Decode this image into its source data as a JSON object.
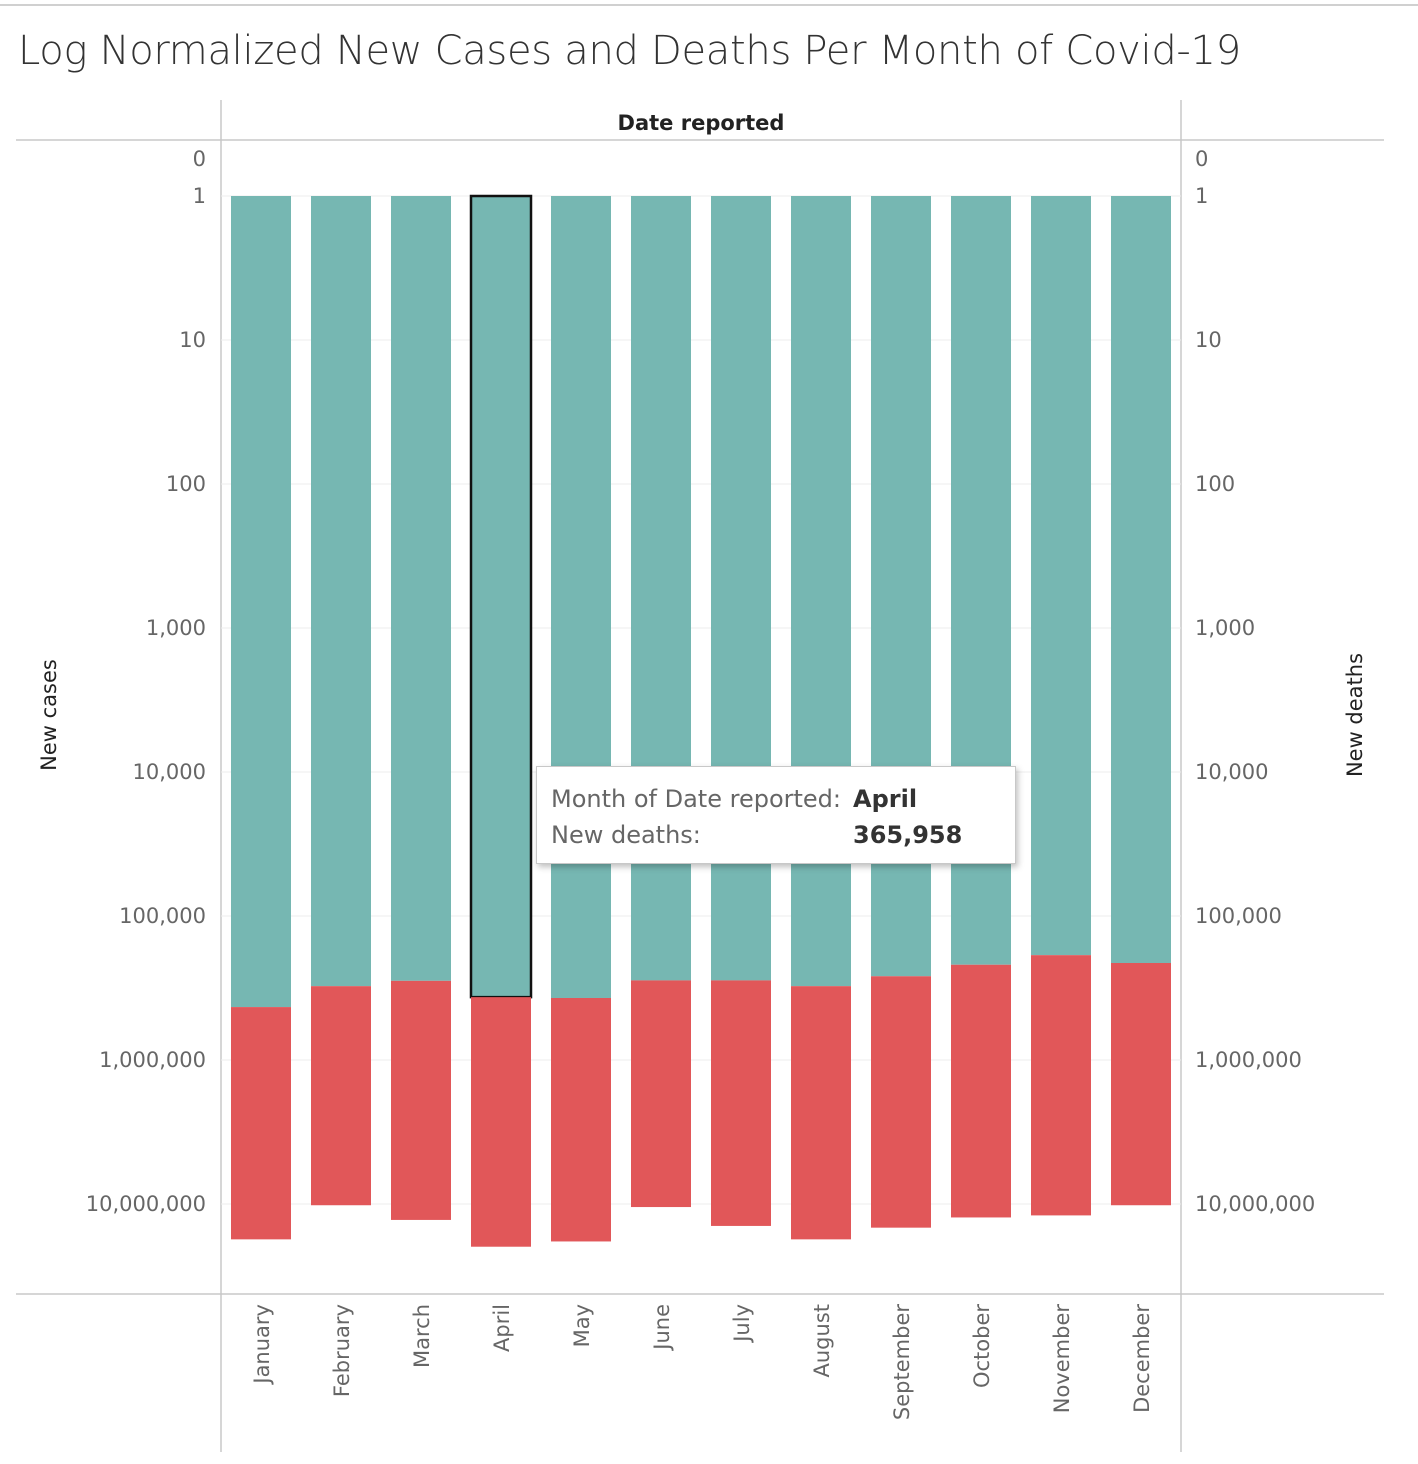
{
  "title": "Log Normalized New Cases and Deaths Per Month of Covid-19",
  "chart_data": {
    "type": "bar",
    "x_header": "Date reported",
    "ylabel_left": "New cases",
    "ylabel_right": "New deaths",
    "y_scale": "log",
    "y_reversed": true,
    "ylim": [
      0,
      30000000
    ],
    "y_ticks": [
      {
        "value": 0,
        "label": "0"
      },
      {
        "value": 1,
        "label": "1"
      },
      {
        "value": 10,
        "label": "10"
      },
      {
        "value": 100,
        "label": "100"
      },
      {
        "value": 1000,
        "label": "1,000"
      },
      {
        "value": 10000,
        "label": "10,000"
      },
      {
        "value": 100000,
        "label": "100,000"
      },
      {
        "value": 1000000,
        "label": "1,000,000"
      },
      {
        "value": 10000000,
        "label": "10,000,000"
      }
    ],
    "categories": [
      "January",
      "February",
      "March",
      "April",
      "May",
      "June",
      "July",
      "August",
      "September",
      "October",
      "November",
      "December"
    ],
    "series": [
      {
        "name": "New deaths",
        "color": "#76b7b2",
        "axis": "right",
        "values": [
          429000,
          307000,
          282000,
          365958,
          371000,
          280000,
          280000,
          307000,
          262000,
          218000,
          187000,
          212000
        ]
      },
      {
        "name": "New cases",
        "color": "#e15759",
        "axis": "left",
        "values": [
          17600000,
          10200000,
          12900000,
          19800000,
          18200000,
          10500000,
          14200000,
          17600000,
          14600000,
          12400000,
          12000000,
          10200000
        ]
      }
    ],
    "highlighted_category": "April",
    "grid": true,
    "legend": "none"
  },
  "tooltip": {
    "row1_label": "Month of Date reported:",
    "row1_value": "April",
    "row2_label": "New deaths:",
    "row2_value": "365,958"
  }
}
